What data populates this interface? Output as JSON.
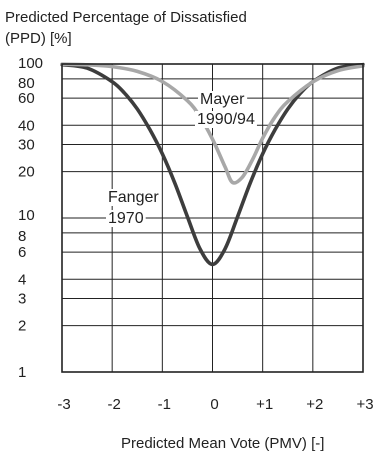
{
  "chart_data": {
    "type": "line",
    "ylabel_lines": [
      "Predicted Percentage of Dissatisfied",
      "(PPD) [%]"
    ],
    "xlabel": "Predicted Mean Vote (PMV) [-]",
    "x_ticks": [
      "-3",
      "-2",
      "-1",
      "0",
      "+1",
      "+2",
      "+3"
    ],
    "x_tick_values": [
      -3,
      -2,
      -1,
      0,
      1,
      2,
      3
    ],
    "y_scale": "log",
    "y_ticks": [
      "1",
      "2",
      "3",
      "4",
      "6",
      "8",
      "10",
      "20",
      "30",
      "40",
      "60",
      "80",
      "100"
    ],
    "y_tick_values": [
      1,
      2,
      3,
      4,
      6,
      8,
      10,
      20,
      30,
      40,
      60,
      80,
      100
    ],
    "xlim": [
      -3,
      3
    ],
    "ylim": [
      1,
      100
    ],
    "grid": true,
    "series": [
      {
        "color": "#3d3d3d",
        "label_lines": [
          "Fanger",
          "1970"
        ],
        "x": [
          -3,
          -2.5,
          -2,
          -1.75,
          -1.5,
          -1.25,
          -1,
          -0.75,
          -0.5,
          -0.25,
          0,
          0.25,
          0.5,
          0.75,
          1,
          1.25,
          1.5,
          1.75,
          2,
          2.5,
          3
        ],
        "y": [
          99.1,
          94.0,
          76.8,
          64.5,
          51.0,
          37.6,
          26.1,
          16.8,
          10.2,
          6.3,
          5.0,
          6.3,
          10.2,
          16.8,
          26.1,
          37.6,
          51.0,
          64.5,
          76.8,
          94.0,
          99.1
        ]
      },
      {
        "color": "#a8a8a8",
        "label_lines": [
          "Mayer",
          "1990/94"
        ],
        "x": [
          -3,
          -2.5,
          -2,
          -1.5,
          -1,
          -0.5,
          -0.25,
          0,
          0.25,
          0.4,
          0.6,
          0.8,
          1,
          1.25,
          1.5,
          2,
          2.5,
          3
        ],
        "y": [
          99.7,
          98.8,
          96.2,
          89.5,
          77.0,
          57.8,
          45.5,
          32.5,
          21.5,
          17.0,
          18.5,
          24.0,
          33.0,
          45.5,
          57.0,
          76.5,
          90.5,
          97.2
        ]
      }
    ]
  }
}
